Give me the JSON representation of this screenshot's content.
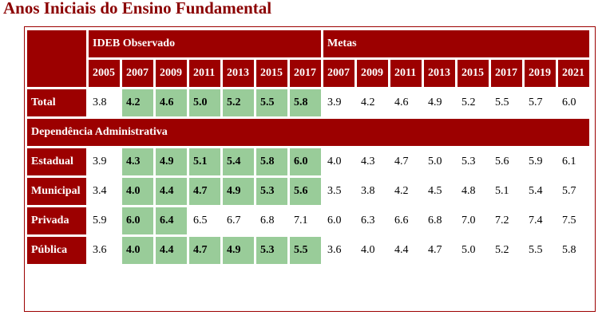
{
  "title": "Anos Iniciais do Ensino Fundamental",
  "groups": {
    "observed": "IDEB Observado",
    "targets": "Metas"
  },
  "years": {
    "observed": [
      "2005",
      "2007",
      "2009",
      "2011",
      "2013",
      "2015",
      "2017"
    ],
    "targets": [
      "2007",
      "2009",
      "2011",
      "2013",
      "2015",
      "2017",
      "2019",
      "2021"
    ]
  },
  "section": "Dependência Administrativa",
  "rows": [
    {
      "label": "Total",
      "observed": [
        "3.8",
        "4.2",
        "4.6",
        "5.0",
        "5.2",
        "5.5",
        "5.8"
      ],
      "targets": [
        "3.9",
        "4.2",
        "4.6",
        "4.9",
        "5.2",
        "5.5",
        "5.7",
        "6.0"
      ]
    },
    {
      "label": "Estadual",
      "observed": [
        "3.9",
        "4.3",
        "4.9",
        "5.1",
        "5.4",
        "5.8",
        "6.0"
      ],
      "targets": [
        "4.0",
        "4.3",
        "4.7",
        "5.0",
        "5.3",
        "5.6",
        "5.9",
        "6.1"
      ]
    },
    {
      "label": "Municipal",
      "observed": [
        "3.4",
        "4.0",
        "4.4",
        "4.7",
        "4.9",
        "5.3",
        "5.6"
      ],
      "targets": [
        "3.5",
        "3.8",
        "4.2",
        "4.5",
        "4.8",
        "5.1",
        "5.4",
        "5.7"
      ]
    },
    {
      "label": "Privada",
      "observed": [
        "5.9",
        "6.0",
        "6.4",
        "6.5",
        "6.7",
        "6.8",
        "7.1"
      ],
      "targets": [
        "6.0",
        "6.3",
        "6.6",
        "6.8",
        "7.0",
        "7.2",
        "7.4",
        "7.5"
      ]
    },
    {
      "label": "Pública",
      "observed": [
        "3.6",
        "4.0",
        "4.4",
        "4.7",
        "4.9",
        "5.3",
        "5.5"
      ],
      "targets": [
        "3.6",
        "4.0",
        "4.4",
        "4.7",
        "5.0",
        "5.2",
        "5.5",
        "5.8"
      ]
    }
  ],
  "colors": {
    "header_bg": "#9c0000",
    "header_text": "#ffffff",
    "met_target_bg": "#99cc99",
    "title": "#8b0000"
  }
}
